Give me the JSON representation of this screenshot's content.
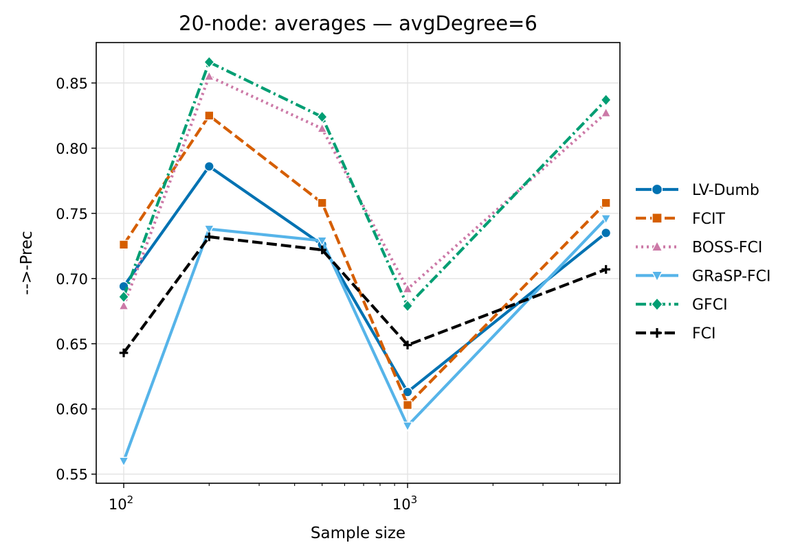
{
  "chart_data": {
    "type": "line",
    "title": "20-node: averages — avgDegree=6",
    "xlabel": "Sample size",
    "ylabel": "-->-Prec",
    "xscale": "log",
    "xlim": [
      80,
      5600
    ],
    "ylim": [
      0.543,
      0.881
    ],
    "grid": true,
    "legend_position": "outside-right",
    "yticks": [
      0.55,
      0.6,
      0.65,
      0.7,
      0.75,
      0.8,
      0.85
    ],
    "ytick_labels": [
      "0.55",
      "0.60",
      "0.65",
      "0.70",
      "0.75",
      "0.80",
      "0.85"
    ],
    "xticks_major": [
      100,
      1000
    ],
    "xtick_labels": [
      {
        "base": "10",
        "exp": "2"
      },
      {
        "base": "10",
        "exp": "3"
      }
    ],
    "xticks_minor": [
      200,
      300,
      400,
      500,
      600,
      700,
      800,
      900,
      2000,
      3000,
      4000,
      5000
    ],
    "x": [
      100,
      200,
      500,
      1000,
      5000
    ],
    "series": [
      {
        "name": "LV-Dumb",
        "color": "#0072B2",
        "marker": "circle",
        "dash": "solid",
        "values": [
          0.694,
          0.786,
          0.726,
          0.613,
          0.735
        ]
      },
      {
        "name": "FCIT",
        "color": "#D55E00",
        "marker": "square",
        "dash": "dashed",
        "values": [
          0.726,
          0.825,
          0.758,
          0.603,
          0.758
        ]
      },
      {
        "name": "BOSS-FCI",
        "color": "#CC79A7",
        "marker": "triangle-up",
        "dash": "dotted",
        "values": [
          0.679,
          0.855,
          0.815,
          0.692,
          0.827
        ]
      },
      {
        "name": "GRaSP-FCI",
        "color": "#56B4E9",
        "marker": "triangle-down",
        "dash": "solid",
        "values": [
          0.56,
          0.738,
          0.729,
          0.587,
          0.746
        ]
      },
      {
        "name": "GFCI",
        "color": "#009E73",
        "marker": "diamond",
        "dash": "dashdot",
        "values": [
          0.686,
          0.866,
          0.824,
          0.679,
          0.837
        ]
      },
      {
        "name": "FCI",
        "color": "#000000",
        "marker": "plus",
        "dash": "dashed",
        "values": [
          0.643,
          0.732,
          0.722,
          0.649,
          0.707
        ]
      }
    ]
  }
}
